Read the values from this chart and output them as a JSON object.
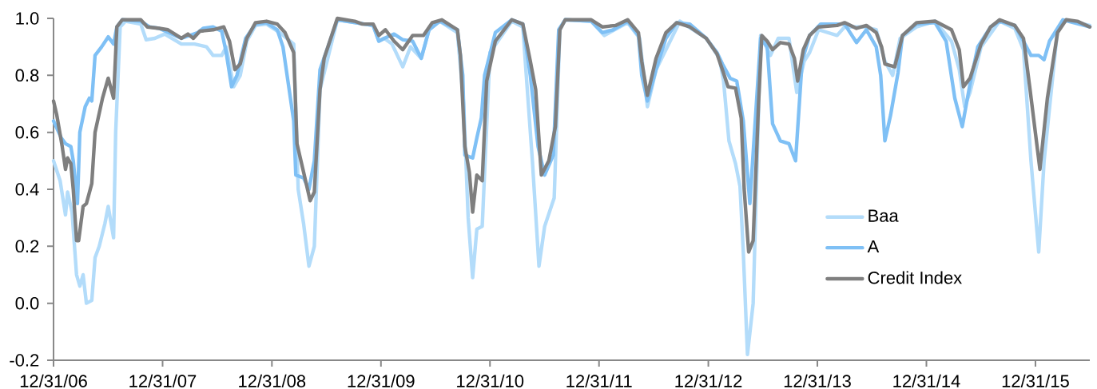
{
  "chart_data": {
    "type": "line",
    "xlim": [
      "2006-12-31",
      "2016-06-30"
    ],
    "ylim": [
      -0.2,
      1.0
    ],
    "xticks": [
      {
        "value": "2006-12-31",
        "label": "12/31/06"
      },
      {
        "value": "2007-12-31",
        "label": "12/31/07"
      },
      {
        "value": "2008-12-31",
        "label": "12/31/08"
      },
      {
        "value": "2009-12-31",
        "label": "12/31/09"
      },
      {
        "value": "2010-12-31",
        "label": "12/31/10"
      },
      {
        "value": "2011-12-31",
        "label": "12/31/11"
      },
      {
        "value": "2012-12-31",
        "label": "12/31/12"
      },
      {
        "value": "2013-12-31",
        "label": "12/31/13"
      },
      {
        "value": "2014-12-31",
        "label": "12/31/14"
      },
      {
        "value": "2015-12-31",
        "label": "12/31/15"
      }
    ],
    "yticks": [
      -0.2,
      {
        "value": 0,
        "label": "0.0"
      },
      0.2,
      0.4,
      0.6,
      0.8,
      {
        "value": 1,
        "label": "1.0"
      }
    ],
    "legend": "right",
    "series": [
      {
        "name": "Baa",
        "color": "#b3dcfa",
        "x": [
          "2006-12-31",
          "2007-01-22",
          "2007-02-09",
          "2007-02-16",
          "2007-03-03",
          "2007-03-18",
          "2007-03-29",
          "2007-04-09",
          "2007-04-20",
          "2007-05-08",
          "2007-05-19",
          "2007-06-02",
          "2007-06-21",
          "2007-07-02",
          "2007-07-20",
          "2007-07-27",
          "2007-08-11",
          "2007-08-29",
          "2007-10-19",
          "2007-11-06",
          "2007-12-05",
          "2008-01-07",
          "2008-03-03",
          "2008-04-16",
          "2008-05-26",
          "2008-06-17",
          "2008-07-16",
          "2008-07-31",
          "2008-08-25",
          "2008-09-16",
          "2008-10-08",
          "2008-11-06",
          "2008-12-13",
          "2009-01-26",
          "2009-03-14",
          "2009-03-29",
          "2009-04-16",
          "2009-05-04",
          "2009-05-22",
          "2009-06-10",
          "2009-08-07",
          "2009-12-05",
          "2009-12-24",
          "2010-01-11",
          "2010-02-06",
          "2010-03-14",
          "2010-04-09",
          "2010-05-15",
          "2010-06-10",
          "2010-07-16",
          "2010-09-13",
          "2010-10-04",
          "2010-10-19",
          "2010-11-03",
          "2010-11-17",
          "2010-12-05",
          "2010-12-31",
          "2011-03-14",
          "2011-04-20",
          "2011-05-22",
          "2011-06-13",
          "2011-07-02",
          "2011-08-03",
          "2011-08-22",
          "2011-09-09",
          "2011-12-05",
          "2012-01-18",
          "2012-04-05",
          "2012-05-15",
          "2012-06-10",
          "2012-07-09",
          "2012-09-27",
          "2012-12-24",
          "2013-02-06",
          "2013-02-20",
          "2013-03-10",
          "2013-04-01",
          "2013-04-16",
          "2013-04-27",
          "2013-05-11",
          "2013-05-30",
          "2013-06-10",
          "2013-06-24",
          "2013-07-27",
          "2013-08-22",
          "2013-09-27",
          "2013-10-23",
          "2013-11-17",
          "2013-12-05",
          "2014-01-04",
          "2014-03-07",
          "2014-04-01",
          "2014-06-02",
          "2014-07-16",
          "2014-08-14",
          "2014-09-09",
          "2014-10-04",
          "2014-11-28",
          "2015-01-29",
          "2015-03-25",
          "2015-04-20",
          "2015-05-08",
          "2015-05-26",
          "2015-07-02",
          "2015-09-02",
          "2015-10-23",
          "2015-11-21",
          "2015-12-16",
          "2016-01-11",
          "2016-01-29",
          "2016-03-14",
          "2016-04-12",
          "2016-06-30"
        ],
        "values": [
          0.5,
          0.43,
          0.31,
          0.39,
          0.32,
          0.1,
          0.06,
          0.1,
          0.0,
          0.01,
          0.16,
          0.2,
          0.28,
          0.34,
          0.23,
          0.6,
          0.97,
          0.99,
          0.98,
          0.925,
          0.93,
          0.945,
          0.91,
          0.91,
          0.9,
          0.87,
          0.87,
          0.9,
          0.76,
          0.8,
          0.92,
          0.975,
          0.98,
          0.95,
          0.91,
          0.4,
          0.28,
          0.13,
          0.2,
          0.75,
          0.995,
          0.975,
          0.92,
          0.93,
          0.91,
          0.83,
          0.9,
          0.86,
          0.96,
          0.99,
          0.95,
          0.7,
          0.3,
          0.09,
          0.26,
          0.27,
          0.88,
          0.99,
          0.97,
          0.5,
          0.13,
          0.27,
          0.37,
          0.96,
          0.995,
          0.99,
          0.94,
          0.985,
          0.93,
          0.69,
          0.82,
          0.99,
          0.93,
          0.86,
          0.78,
          0.57,
          0.49,
          0.41,
          0.18,
          -0.18,
          0.0,
          0.41,
          0.94,
          0.87,
          0.93,
          0.93,
          0.74,
          0.85,
          0.88,
          0.96,
          0.94,
          0.97,
          0.97,
          0.96,
          0.85,
          0.8,
          0.93,
          0.97,
          0.99,
          0.92,
          0.82,
          0.69,
          0.74,
          0.9,
          0.99,
          0.965,
          0.89,
          0.5,
          0.18,
          0.5,
          0.96,
          0.995,
          0.975
        ]
      },
      {
        "name": "A",
        "color": "#7fc0f5",
        "x": [
          "2006-12-31",
          "2007-01-26",
          "2007-02-09",
          "2007-02-27",
          "2007-03-07",
          "2007-03-21",
          "2007-03-29",
          "2007-04-16",
          "2007-04-30",
          "2007-05-08",
          "2007-05-19",
          "2007-06-10",
          "2007-07-02",
          "2007-07-20",
          "2007-07-31",
          "2007-08-18",
          "2007-10-19",
          "2007-11-17",
          "2007-12-20",
          "2008-03-03",
          "2008-04-27",
          "2008-05-15",
          "2008-06-17",
          "2008-07-16",
          "2008-07-31",
          "2008-08-18",
          "2008-09-05",
          "2008-10-04",
          "2008-11-06",
          "2008-12-13",
          "2009-01-18",
          "2009-02-06",
          "2009-02-24",
          "2009-03-14",
          "2009-03-21",
          "2009-04-16",
          "2009-05-04",
          "2009-05-22",
          "2009-06-10",
          "2009-08-07",
          "2009-12-05",
          "2009-12-24",
          "2010-01-11",
          "2010-02-13",
          "2010-03-14",
          "2010-04-16",
          "2010-05-15",
          "2010-06-10",
          "2010-07-16",
          "2010-09-13",
          "2010-10-01",
          "2010-10-08",
          "2010-11-03",
          "2010-11-17",
          "2010-12-02",
          "2010-12-13",
          "2011-01-18",
          "2011-03-14",
          "2011-04-20",
          "2011-05-15",
          "2011-06-10",
          "2011-07-02",
          "2011-07-31",
          "2011-08-18",
          "2011-09-09",
          "2011-12-05",
          "2012-01-11",
          "2012-02-16",
          "2012-04-05",
          "2012-05-11",
          "2012-05-22",
          "2012-06-10",
          "2012-07-09",
          "2012-08-11",
          "2012-09-16",
          "2012-10-30",
          "2012-12-24",
          "2013-01-29",
          "2013-02-16",
          "2013-03-14",
          "2013-04-05",
          "2013-04-27",
          "2013-05-19",
          "2013-06-24",
          "2013-07-16",
          "2013-08-03",
          "2013-08-29",
          "2013-09-27",
          "2013-10-19",
          "2013-11-10",
          "2013-12-05",
          "2014-01-11",
          "2014-04-01",
          "2014-05-11",
          "2014-06-13",
          "2014-07-16",
          "2014-07-31",
          "2014-08-14",
          "2014-09-02",
          "2014-09-27",
          "2014-10-12",
          "2014-11-28",
          "2015-01-29",
          "2015-03-07",
          "2015-04-05",
          "2015-04-30",
          "2015-05-26",
          "2015-06-21",
          "2015-08-03",
          "2015-09-02",
          "2015-10-23",
          "2015-11-21",
          "2015-12-16",
          "2016-01-11",
          "2016-01-29",
          "2016-02-16",
          "2016-04-01",
          "2016-06-30"
        ],
        "values": [
          0.64,
          0.58,
          0.56,
          0.55,
          0.5,
          0.35,
          0.6,
          0.69,
          0.72,
          0.71,
          0.87,
          0.9,
          0.935,
          0.91,
          0.97,
          0.995,
          0.99,
          0.97,
          0.965,
          0.93,
          0.95,
          0.965,
          0.97,
          0.955,
          0.88,
          0.76,
          0.8,
          0.93,
          0.98,
          0.985,
          0.96,
          0.9,
          0.77,
          0.64,
          0.45,
          0.44,
          0.4,
          0.5,
          0.82,
          0.995,
          0.975,
          0.92,
          0.93,
          0.945,
          0.925,
          0.92,
          0.86,
          0.96,
          0.99,
          0.96,
          0.8,
          0.52,
          0.51,
          0.58,
          0.65,
          0.8,
          0.95,
          0.995,
          0.98,
          0.8,
          0.55,
          0.45,
          0.52,
          0.96,
          0.995,
          0.99,
          0.95,
          0.96,
          0.99,
          0.94,
          0.8,
          0.71,
          0.82,
          0.93,
          0.985,
          0.98,
          0.93,
          0.88,
          0.84,
          0.79,
          0.78,
          0.64,
          0.35,
          0.93,
          0.9,
          0.63,
          0.57,
          0.56,
          0.5,
          0.85,
          0.94,
          0.98,
          0.98,
          0.915,
          0.96,
          0.9,
          0.8,
          0.57,
          0.66,
          0.81,
          0.94,
          0.98,
          0.985,
          0.92,
          0.72,
          0.62,
          0.77,
          0.9,
          0.97,
          0.99,
          0.975,
          0.92,
          0.87,
          0.87,
          0.855,
          0.92,
          0.995,
          0.97
        ]
      },
      {
        "name": "Credit Index",
        "color": "#7f7f7f",
        "x": [
          "2006-12-31",
          "2007-01-11",
          "2007-01-29",
          "2007-02-09",
          "2007-02-16",
          "2007-02-27",
          "2007-03-07",
          "2007-03-18",
          "2007-03-25",
          "2007-04-09",
          "2007-04-20",
          "2007-05-08",
          "2007-05-19",
          "2007-06-13",
          "2007-07-02",
          "2007-07-20",
          "2007-07-31",
          "2007-08-18",
          "2007-10-19",
          "2007-11-10",
          "2007-12-20",
          "2008-01-18",
          "2008-03-03",
          "2008-03-25",
          "2008-04-12",
          "2008-05-04",
          "2008-06-17",
          "2008-07-23",
          "2008-08-11",
          "2008-08-29",
          "2008-09-16",
          "2008-10-08",
          "2008-11-06",
          "2008-12-13",
          "2009-01-18",
          "2009-02-13",
          "2009-03-14",
          "2009-03-25",
          "2009-04-16",
          "2009-05-08",
          "2009-05-22",
          "2009-06-10",
          "2009-06-24",
          "2009-08-07",
          "2009-10-04",
          "2009-10-30",
          "2009-12-05",
          "2009-12-24",
          "2010-01-15",
          "2010-02-13",
          "2010-03-14",
          "2010-04-16",
          "2010-05-22",
          "2010-06-21",
          "2010-07-23",
          "2010-09-13",
          "2010-09-23",
          "2010-10-08",
          "2010-10-23",
          "2010-11-03",
          "2010-11-17",
          "2010-12-05",
          "2010-12-20",
          "2011-01-18",
          "2011-03-14",
          "2011-04-20",
          "2011-05-15",
          "2011-06-02",
          "2011-06-21",
          "2011-07-16",
          "2011-08-07",
          "2011-08-22",
          "2011-09-09",
          "2011-12-05",
          "2012-01-11",
          "2012-02-24",
          "2012-04-05",
          "2012-05-11",
          "2012-05-22",
          "2012-06-10",
          "2012-07-09",
          "2012-08-11",
          "2012-09-16",
          "2012-10-30",
          "2012-12-24",
          "2013-01-29",
          "2013-02-16",
          "2013-03-07",
          "2013-04-01",
          "2013-04-20",
          "2013-04-30",
          "2013-05-15",
          "2013-05-30",
          "2013-06-17",
          "2013-06-28",
          "2013-07-16",
          "2013-08-03",
          "2013-08-29",
          "2013-09-27",
          "2013-10-15",
          "2013-10-26",
          "2013-11-14",
          "2013-12-05",
          "2014-01-04",
          "2014-03-07",
          "2014-04-01",
          "2014-05-11",
          "2014-06-13",
          "2014-07-16",
          "2014-08-03",
          "2014-08-14",
          "2014-09-16",
          "2014-10-12",
          "2014-11-28",
          "2015-01-29",
          "2015-03-25",
          "2015-04-20",
          "2015-05-04",
          "2015-05-26",
          "2015-07-02",
          "2015-08-03",
          "2015-09-02",
          "2015-10-23",
          "2015-11-21",
          "2015-12-13",
          "2016-01-15",
          "2016-02-09",
          "2016-03-14",
          "2016-04-12",
          "2016-05-19",
          "2016-06-30"
        ],
        "values": [
          0.71,
          0.66,
          0.55,
          0.47,
          0.51,
          0.49,
          0.4,
          0.22,
          0.22,
          0.34,
          0.35,
          0.42,
          0.6,
          0.72,
          0.79,
          0.72,
          0.97,
          0.995,
          0.995,
          0.97,
          0.965,
          0.96,
          0.93,
          0.945,
          0.93,
          0.955,
          0.96,
          0.97,
          0.92,
          0.82,
          0.84,
          0.93,
          0.985,
          0.99,
          0.98,
          0.95,
          0.88,
          0.56,
          0.46,
          0.36,
          0.39,
          0.75,
          0.86,
          1.0,
          0.99,
          0.98,
          0.98,
          0.94,
          0.96,
          0.92,
          0.89,
          0.94,
          0.94,
          0.985,
          0.995,
          0.96,
          0.87,
          0.55,
          0.46,
          0.32,
          0.45,
          0.43,
          0.78,
          0.92,
          0.995,
          0.98,
          0.85,
          0.75,
          0.45,
          0.5,
          0.62,
          0.96,
          0.995,
          0.995,
          0.97,
          0.975,
          0.995,
          0.95,
          0.85,
          0.73,
          0.86,
          0.95,
          0.985,
          0.97,
          0.93,
          0.875,
          0.82,
          0.76,
          0.755,
          0.65,
          0.4,
          0.18,
          0.22,
          0.7,
          0.94,
          0.92,
          0.89,
          0.915,
          0.91,
          0.86,
          0.78,
          0.89,
          0.94,
          0.97,
          0.975,
          0.985,
          0.965,
          0.975,
          0.95,
          0.9,
          0.84,
          0.83,
          0.94,
          0.985,
          0.99,
          0.96,
          0.89,
          0.76,
          0.79,
          0.91,
          0.97,
          0.995,
          0.975,
          0.93,
          0.75,
          0.47,
          0.72,
          0.95,
          0.995,
          0.99,
          0.97
        ]
      }
    ]
  }
}
